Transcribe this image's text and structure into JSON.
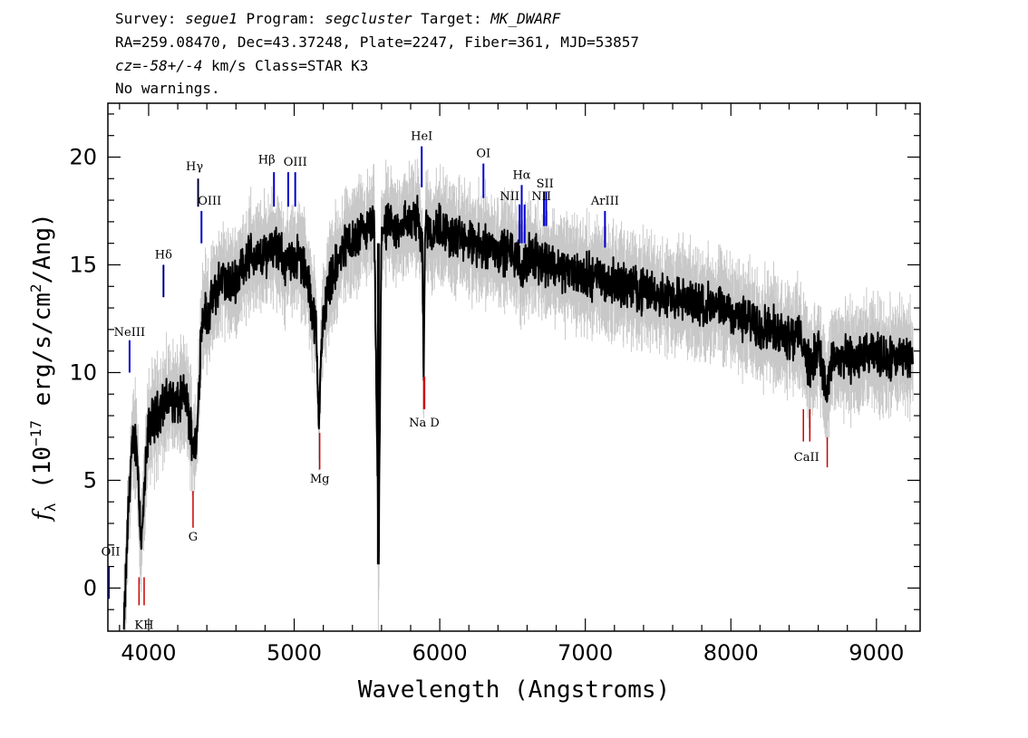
{
  "header": {
    "line1": [
      {
        "text": "Survey: ",
        "italic": false
      },
      {
        "text": "segue1",
        "italic": true
      },
      {
        "text": " Program: ",
        "italic": false
      },
      {
        "text": "segcluster",
        "italic": true
      },
      {
        "text": " Target: ",
        "italic": false
      },
      {
        "text": "MK_DWARF",
        "italic": true
      }
    ],
    "line2": "RA=259.08470, Dec=43.37248, Plate=2247, Fiber=361, MJD=53857",
    "line3": [
      {
        "text": "cz=-58+/-4",
        "italic": true
      },
      {
        "text": " km/s Class=STAR K3",
        "italic": false
      }
    ],
    "line4": "No warnings."
  },
  "chart_data": {
    "type": "line",
    "title": "",
    "xlabel": "Wavelength (Angstroms)",
    "ylabel": "f_λ (10^-17 erg/s/cm^2/Ang)",
    "ylabel_parts": {
      "symbol": "f",
      "sub": "λ",
      "pre": " (10",
      "sup": "−17",
      "mid": " erg/s/cm",
      "sup2": "2",
      "post": "/Ang)"
    },
    "xlim": [
      3720,
      9300
    ],
    "ylim": [
      -2,
      22.5
    ],
    "xticks": [
      4000,
      5000,
      6000,
      7000,
      8000,
      9000
    ],
    "yticks": [
      0,
      5,
      10,
      15,
      20
    ],
    "grid": false,
    "series": [
      {
        "role": "flux",
        "color": "#000000",
        "x": [
          3830,
          3860,
          3880,
          3900,
          3920,
          3950,
          3980,
          4000,
          4050,
          4100,
          4150,
          4200,
          4250,
          4300,
          4330,
          4360,
          4380,
          4400,
          4450,
          4500,
          4550,
          4600,
          4650,
          4700,
          4750,
          4800,
          4850,
          4900,
          4950,
          5000,
          5050,
          5100,
          5150,
          5170,
          5180,
          5200,
          5250,
          5300,
          5350,
          5400,
          5450,
          5500,
          5550,
          5580,
          5600,
          5650,
          5700,
          5750,
          5800,
          5850,
          5880,
          5890,
          5900,
          5950,
          6000,
          6050,
          6100,
          6150,
          6200,
          6250,
          6300,
          6350,
          6400,
          6450,
          6500,
          6563,
          6600,
          6650,
          6700,
          6750,
          6800,
          6900,
          7000,
          7100,
          7200,
          7300,
          7400,
          7500,
          7600,
          7700,
          7800,
          7900,
          8000,
          8100,
          8200,
          8300,
          8400,
          8500,
          8542,
          8600,
          8662,
          8700,
          8800,
          8900,
          9000,
          9100,
          9200,
          9250
        ],
        "y": [
          -2,
          3.5,
          6,
          7,
          6.5,
          2,
          5.5,
          7.5,
          8,
          8.5,
          8.8,
          8.5,
          9,
          7,
          6.5,
          12,
          13,
          12.5,
          13.5,
          14.5,
          14,
          14.3,
          15,
          15.5,
          15.2,
          15.5,
          16,
          15.5,
          15,
          15.4,
          15.2,
          14,
          12,
          8,
          10,
          12.5,
          14.5,
          15,
          16,
          16,
          16.3,
          16.5,
          16.8,
          1.1,
          16.8,
          16.7,
          16.5,
          17,
          17,
          17.2,
          16,
          9.8,
          17,
          16.5,
          16.8,
          16.5,
          16.2,
          16.2,
          16,
          15.8,
          16,
          15.8,
          15.7,
          15.6,
          15.6,
          14.8,
          15.3,
          15.3,
          15.2,
          15.1,
          14.9,
          14.7,
          14.5,
          14.4,
          14.2,
          14,
          13.8,
          13.7,
          13.5,
          13.3,
          13.2,
          13,
          12.8,
          12.4,
          12.2,
          12,
          11.8,
          11.5,
          10,
          11.3,
          9,
          10.8,
          10.6,
          10.7,
          10.8,
          10.6,
          10.7,
          10.8
        ]
      },
      {
        "role": "error-band",
        "color": "#c8c8c8",
        "halfwidth": 1.3
      }
    ],
    "lines_emission": [
      {
        "label": "OII",
        "wave": 3727,
        "y0": -0.5,
        "y1": 1
      },
      {
        "label": "NeIII",
        "wave": 3869,
        "y0": 10,
        "y1": 11.5
      },
      {
        "label": "Hδ",
        "wave": 4102,
        "y0": 13.5,
        "y1": 15
      },
      {
        "label": "Hγ",
        "wave": 4340,
        "y0": 17.7,
        "y1": 19
      },
      {
        "label": "OIII",
        "wave": 4363,
        "y0": 16,
        "y1": 17.5
      },
      {
        "label": "Hβ",
        "wave": 4861,
        "y0": 17.7,
        "y1": 19.3
      },
      {
        "label": "OIII",
        "wave": 4959,
        "y0": 17.7,
        "y1": 19.3
      },
      {
        "label": "OIII",
        "wave": 5007,
        "y0": 17.7,
        "y1": 19.3
      },
      {
        "label": "HeI",
        "wave": 5876,
        "y0": 18.6,
        "y1": 20.5
      },
      {
        "label": "OI",
        "wave": 6300,
        "y0": 18.1,
        "y1": 19.7
      },
      {
        "label": "NII",
        "wave": 6548,
        "y0": 16,
        "y1": 17.8
      },
      {
        "label": "Hα",
        "wave": 6563,
        "y0": 16,
        "y1": 18.7
      },
      {
        "label": "NII",
        "wave": 6583,
        "y0": 16,
        "y1": 17.8
      },
      {
        "label": "SII",
        "wave": 6716,
        "y0": 16.8,
        "y1": 18.4
      },
      {
        "label": "SII",
        "wave": 6731,
        "y0": 16.8,
        "y1": 18.4
      },
      {
        "label": "ArIII",
        "wave": 7135,
        "y0": 15.8,
        "y1": 17.5
      }
    ],
    "lines_absorption": [
      {
        "label": "K",
        "wave": 3934,
        "y0": -0.8,
        "y1": 0.5
      },
      {
        "label": "H",
        "wave": 3969,
        "y0": -0.8,
        "y1": 0.5
      },
      {
        "label": "G",
        "wave": 4305,
        "y0": 2.8,
        "y1": 4.5
      },
      {
        "label": "Mg",
        "wave": 5175,
        "y0": 5.5,
        "y1": 7.2
      },
      {
        "label": "Na",
        "wave": 5890,
        "y0": 8.3,
        "y1": 9.8
      },
      {
        "label": "D",
        "wave": 5896,
        "y0": 8.3,
        "y1": 9.8
      },
      {
        "label": "CaII",
        "wave": 8498,
        "y0": 6.8,
        "y1": 8.3
      },
      {
        "label": "CaII",
        "wave": 8542,
        "y0": 6.8,
        "y1": 8.3
      },
      {
        "label": "CaII",
        "wave": 8662,
        "y0": 5.6,
        "y1": 7
      }
    ],
    "line_text": {
      "oii": "OII",
      "neiii": "NeIII",
      "hdelta": "Hδ",
      "hgamma": "Hγ",
      "oiii_4363": "OIII",
      "hbeta": "Hβ",
      "oiii_5007": "OIII",
      "hei": "HeI",
      "oi": "OI",
      "nii_a": "NII",
      "halpha": "Hα",
      "sii": "SII",
      "nii_b": "NII",
      "ariii": "ArIII",
      "kh": "KH",
      "g": "G",
      "mg": "Mg",
      "nad": "Na D",
      "caii": "CaII"
    },
    "colors": {
      "emission": "#0000cc",
      "absorption": "#cc0000",
      "flux": "#000000",
      "error": "#c8c8c8"
    }
  }
}
